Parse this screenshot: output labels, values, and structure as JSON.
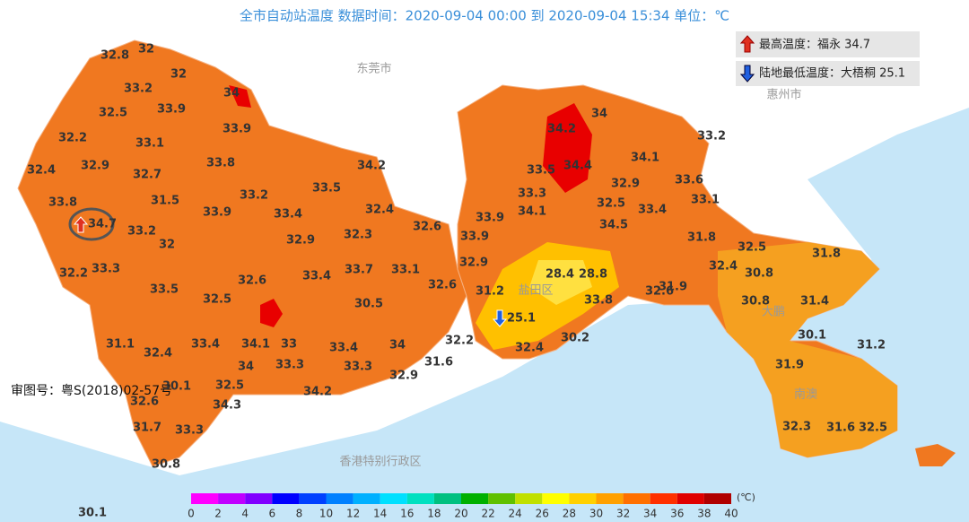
{
  "title": "全市自动站温度  数据时间：2020-09-04 00:00 到 2020-09-04 15:34  单位：℃",
  "legend": {
    "max": "最高温度：福永 34.7",
    "min": "陆地最低温度：大梧桐 25.1"
  },
  "places": [
    "东莞市",
    "惠州市",
    "香港特别行政区",
    "盐田区",
    "南澳",
    "大鹏"
  ],
  "review": "审图号：粤S(2018)02-57号",
  "stations": [
    "32.8",
    "32",
    "32",
    "33.2",
    "34",
    "32.5",
    "33.9",
    "32.2",
    "33.1",
    "33.9",
    "32.4",
    "32.9",
    "32.7",
    "33.8",
    "34.2",
    "33.8",
    "31.5",
    "33.2",
    "33.5",
    "34.7",
    "33.2",
    "33.9",
    "33.4",
    "32.4",
    "32.6",
    "32",
    "32.9",
    "32.3",
    "32.2",
    "33.3",
    "33.5",
    "32.6",
    "33.4",
    "33.7",
    "33.1",
    "32.6",
    "32.5",
    "30.5",
    "31.1",
    "32.4",
    "33.4",
    "34.1",
    "33",
    "33.4",
    "34",
    "32.2",
    "34",
    "33.3",
    "33.3",
    "31.6",
    "32.9",
    "32.5",
    "30.1",
    "34.2",
    "32.6",
    "34.3",
    "31.7",
    "33.3",
    "30.8",
    "30.1",
    "34",
    "34.2",
    "33.2",
    "34.1",
    "33.5",
    "34.4",
    "33.6",
    "32.9",
    "33.3",
    "33.1",
    "32.5",
    "34.1",
    "33.4",
    "33.9",
    "34.5",
    "33.9",
    "31.8",
    "32.5",
    "31.8",
    "32.9",
    "32.4",
    "30.8",
    "28.4",
    "28.8",
    "31.2",
    "31.9",
    "32.6",
    "33.8",
    "30.8",
    "31.4",
    "25.1",
    "32.4",
    "30.2",
    "30.1",
    "31.2",
    "31.9",
    "32.3",
    "31.6",
    "32.5"
  ],
  "scale": {
    "ticks": [
      0,
      2,
      4,
      6,
      8,
      10,
      12,
      14,
      16,
      18,
      20,
      22,
      24,
      26,
      28,
      30,
      32,
      34,
      36,
      38,
      40
    ],
    "unit": "(℃)",
    "colors": [
      "#ff00ff",
      "#c000ff",
      "#8000ff",
      "#0000ff",
      "#0040ff",
      "#0080ff",
      "#00b0ff",
      "#00e0ff",
      "#00e0c0",
      "#00c080",
      "#00b000",
      "#60c000",
      "#c0e000",
      "#ffff00",
      "#ffd000",
      "#ffa000",
      "#ff7000",
      "#ff3000",
      "#e00000",
      "#b00000"
    ]
  }
}
